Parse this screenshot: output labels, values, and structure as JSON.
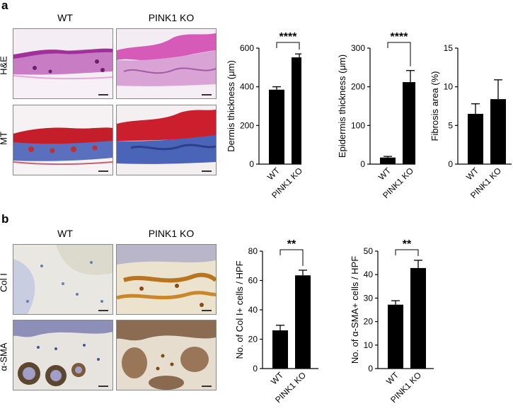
{
  "panels": [
    {
      "letter": "a",
      "col_labels": [
        "WT",
        "PINK1  KO"
      ],
      "row_labels": [
        "H&E",
        "MT"
      ]
    },
    {
      "letter": "b",
      "col_labels": [
        "WT",
        "PINK1  KO"
      ],
      "row_labels": [
        "Col  I",
        "α-SMA"
      ]
    }
  ],
  "chart_data": [
    {
      "type": "bar",
      "categories": [
        "WT",
        "PINK1 KO"
      ],
      "values": [
        385,
        552
      ],
      "errors": [
        15,
        18
      ],
      "ylabel": "Dermis thickness (μm)",
      "ylim": [
        0,
        600
      ],
      "yticks": [
        "0",
        "200",
        "400",
        "600"
      ],
      "significance": "****",
      "colors": [
        "#000000"
      ]
    },
    {
      "type": "bar",
      "categories": [
        "WT",
        "PINK1 KO"
      ],
      "values": [
        17,
        212
      ],
      "errors": [
        3,
        30
      ],
      "ylabel": "Epidermis thickness (μm)",
      "ylim": [
        0,
        300
      ],
      "yticks": [
        "0",
        "100",
        "200",
        "300"
      ],
      "significance": "****",
      "colors": [
        "#000000"
      ]
    },
    {
      "type": "bar",
      "categories": [
        "WT",
        "PINK1 KO"
      ],
      "values": [
        6.5,
        8.4
      ],
      "errors": [
        1.3,
        2.5
      ],
      "ylabel": "Fibrosis area (%)",
      "ylim": [
        0,
        15
      ],
      "yticks": [
        "0",
        "5",
        "10",
        "15"
      ],
      "significance": "",
      "colors": [
        "#000000"
      ]
    },
    {
      "type": "bar",
      "categories": [
        "WT",
        "PINK1 KO"
      ],
      "values": [
        26,
        63.5
      ],
      "errors": [
        3.5,
        3.5
      ],
      "ylabel": "No. of Col I+ cells / HPF",
      "ylim": [
        0,
        80
      ],
      "yticks": [
        "0",
        "20",
        "40",
        "60",
        "80"
      ],
      "significance": "**",
      "colors": [
        "#000000"
      ]
    },
    {
      "type": "bar",
      "categories": [
        "WT",
        "PINK1 KO"
      ],
      "values": [
        27.2,
        42.8
      ],
      "errors": [
        1.7,
        3.3
      ],
      "ylabel": "No. of α-SMA+ cells / HPF",
      "ylim": [
        0,
        50
      ],
      "yticks": [
        "0",
        "10",
        "20",
        "30",
        "40",
        "50"
      ],
      "significance": "**",
      "colors": [
        "#000000"
      ]
    }
  ]
}
